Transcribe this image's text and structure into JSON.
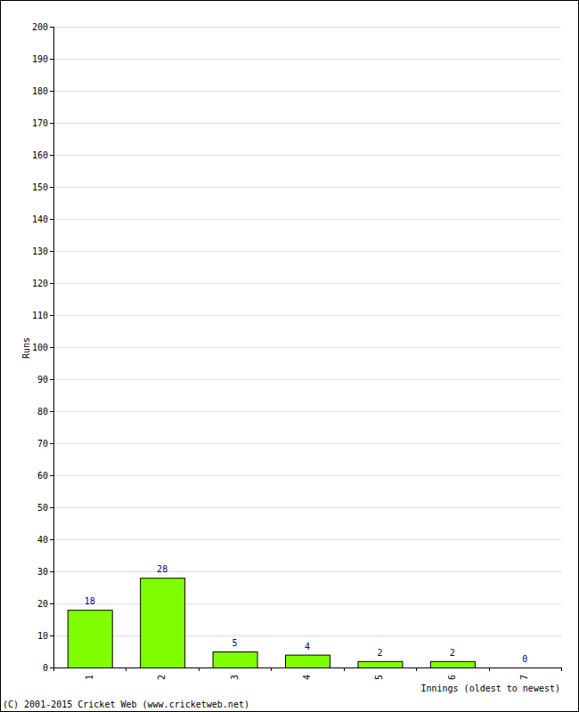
{
  "chart_data": {
    "type": "bar",
    "x_label": "Innings (oldest to newest)",
    "y_label": "Runs",
    "annotations": [
      "(C) 2001-2015 Cricket Web (www.cricketweb.net)"
    ],
    "categories": [
      "1",
      "2",
      "3",
      "4",
      "5",
      "6",
      "7"
    ],
    "values": [
      18,
      28,
      5,
      4,
      2,
      2,
      0
    ],
    "color": "#80ff00",
    "ylim": [
      0,
      200
    ],
    "yticks": [
      0,
      10,
      20,
      30,
      40,
      50,
      60,
      70,
      80,
      90,
      100,
      110,
      120,
      130,
      140,
      150,
      160,
      170,
      180,
      190,
      200
    ],
    "grid": true,
    "data_labels": true
  }
}
